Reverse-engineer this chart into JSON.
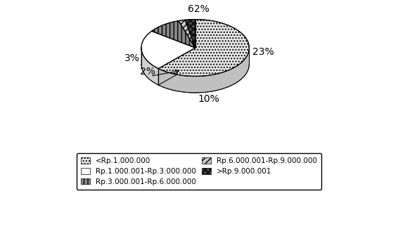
{
  "slices": [
    62,
    23,
    10,
    2,
    3
  ],
  "pct_labels": [
    "62%",
    "23%",
    "10%",
    "2%",
    "3%"
  ],
  "legend_labels": [
    "<Rp.1.000.000",
    "Rp.1.000.001-Rp.3.000.000",
    "Rp.3.000.001-Rp.6.000.000",
    "Rp.6.000.001-Rp.9.000.000",
    ">Rp.9.000.001"
  ],
  "face_colors": [
    "#e8e8e8",
    "#ffffff",
    "#888888",
    "#c8c8c8",
    "#444444"
  ],
  "side_colors": [
    "#c0c0c0",
    "#d0d0d0",
    "#606060",
    "#a8a8a8",
    "#282828"
  ],
  "hatch_patterns": [
    "....",
    "",
    "|||",
    "////",
    "xxxx"
  ],
  "startangle_deg": 90,
  "background_color": "#ffffff",
  "depth": 0.22
}
